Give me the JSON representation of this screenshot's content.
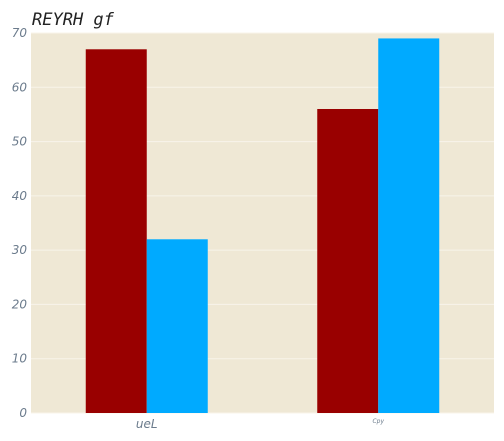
{
  "chart_data": {
    "type": "bar",
    "title": "REYRH gf",
    "categories": [
      "ueL",
      "Cpy"
    ],
    "series": [
      {
        "color": "#990000",
        "values": [
          67,
          56
        ]
      },
      {
        "color": "#00aaff",
        "values": [
          32,
          69
        ]
      }
    ],
    "ylim": [
      0,
      70
    ],
    "yticks": [
      0,
      10,
      20,
      30,
      40,
      50,
      60,
      70
    ],
    "grid": true,
    "background_color": "#efe8d5",
    "grid_color": "#f8f4ea"
  }
}
